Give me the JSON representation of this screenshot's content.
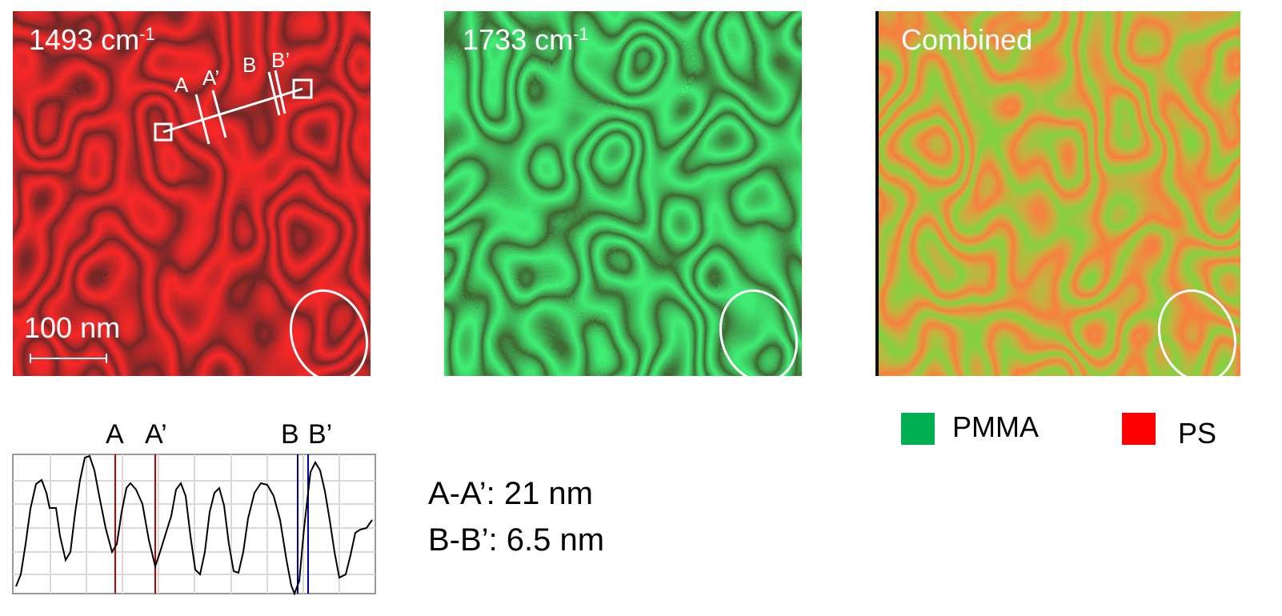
{
  "panels": [
    {
      "label": "1493 cm",
      "superscript": "-1"
    },
    {
      "label": "1733 cm",
      "superscript": "-1"
    },
    {
      "label": "Combined"
    }
  ],
  "scale_bar": "100 nm",
  "line_markers": [
    "A",
    "A’",
    "B",
    "B’"
  ],
  "profile_markers": [
    "A",
    "A’",
    "B",
    "B’"
  ],
  "measurements": [
    "A-A’: 21 nm",
    "B-B’: 6.5 nm"
  ],
  "legend": [
    {
      "name": "PMMA",
      "color": "#00b050"
    },
    {
      "name": "PS",
      "color": "#ff0000"
    }
  ]
}
